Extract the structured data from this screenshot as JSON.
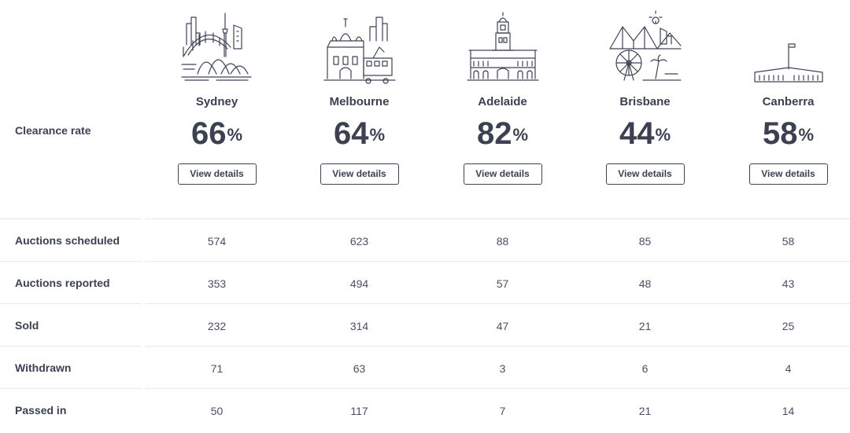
{
  "clearance_label": "Clearance rate",
  "percent_sign": "%",
  "cities": [
    {
      "name": "Sydney",
      "rate": "66",
      "button": "View details",
      "icon": "sydney-skyline-icon"
    },
    {
      "name": "Melbourne",
      "rate": "64",
      "button": "View details",
      "icon": "melbourne-skyline-icon"
    },
    {
      "name": "Adelaide",
      "rate": "82",
      "button": "View details",
      "icon": "adelaide-skyline-icon"
    },
    {
      "name": "Brisbane",
      "rate": "44",
      "button": "View details",
      "icon": "brisbane-skyline-icon"
    },
    {
      "name": "Canberra",
      "rate": "58",
      "button": "View details",
      "icon": "canberra-skyline-icon"
    }
  ],
  "rows": [
    {
      "label": "Auctions scheduled",
      "values": [
        "574",
        "623",
        "88",
        "85",
        "58"
      ]
    },
    {
      "label": "Auctions reported",
      "values": [
        "353",
        "494",
        "57",
        "48",
        "43"
      ]
    },
    {
      "label": "Sold",
      "values": [
        "232",
        "314",
        "47",
        "21",
        "25"
      ]
    },
    {
      "label": "Withdrawn",
      "values": [
        "71",
        "63",
        "3",
        "6",
        "4"
      ]
    },
    {
      "label": "Passed in",
      "values": [
        "50",
        "117",
        "7",
        "21",
        "14"
      ]
    }
  ]
}
